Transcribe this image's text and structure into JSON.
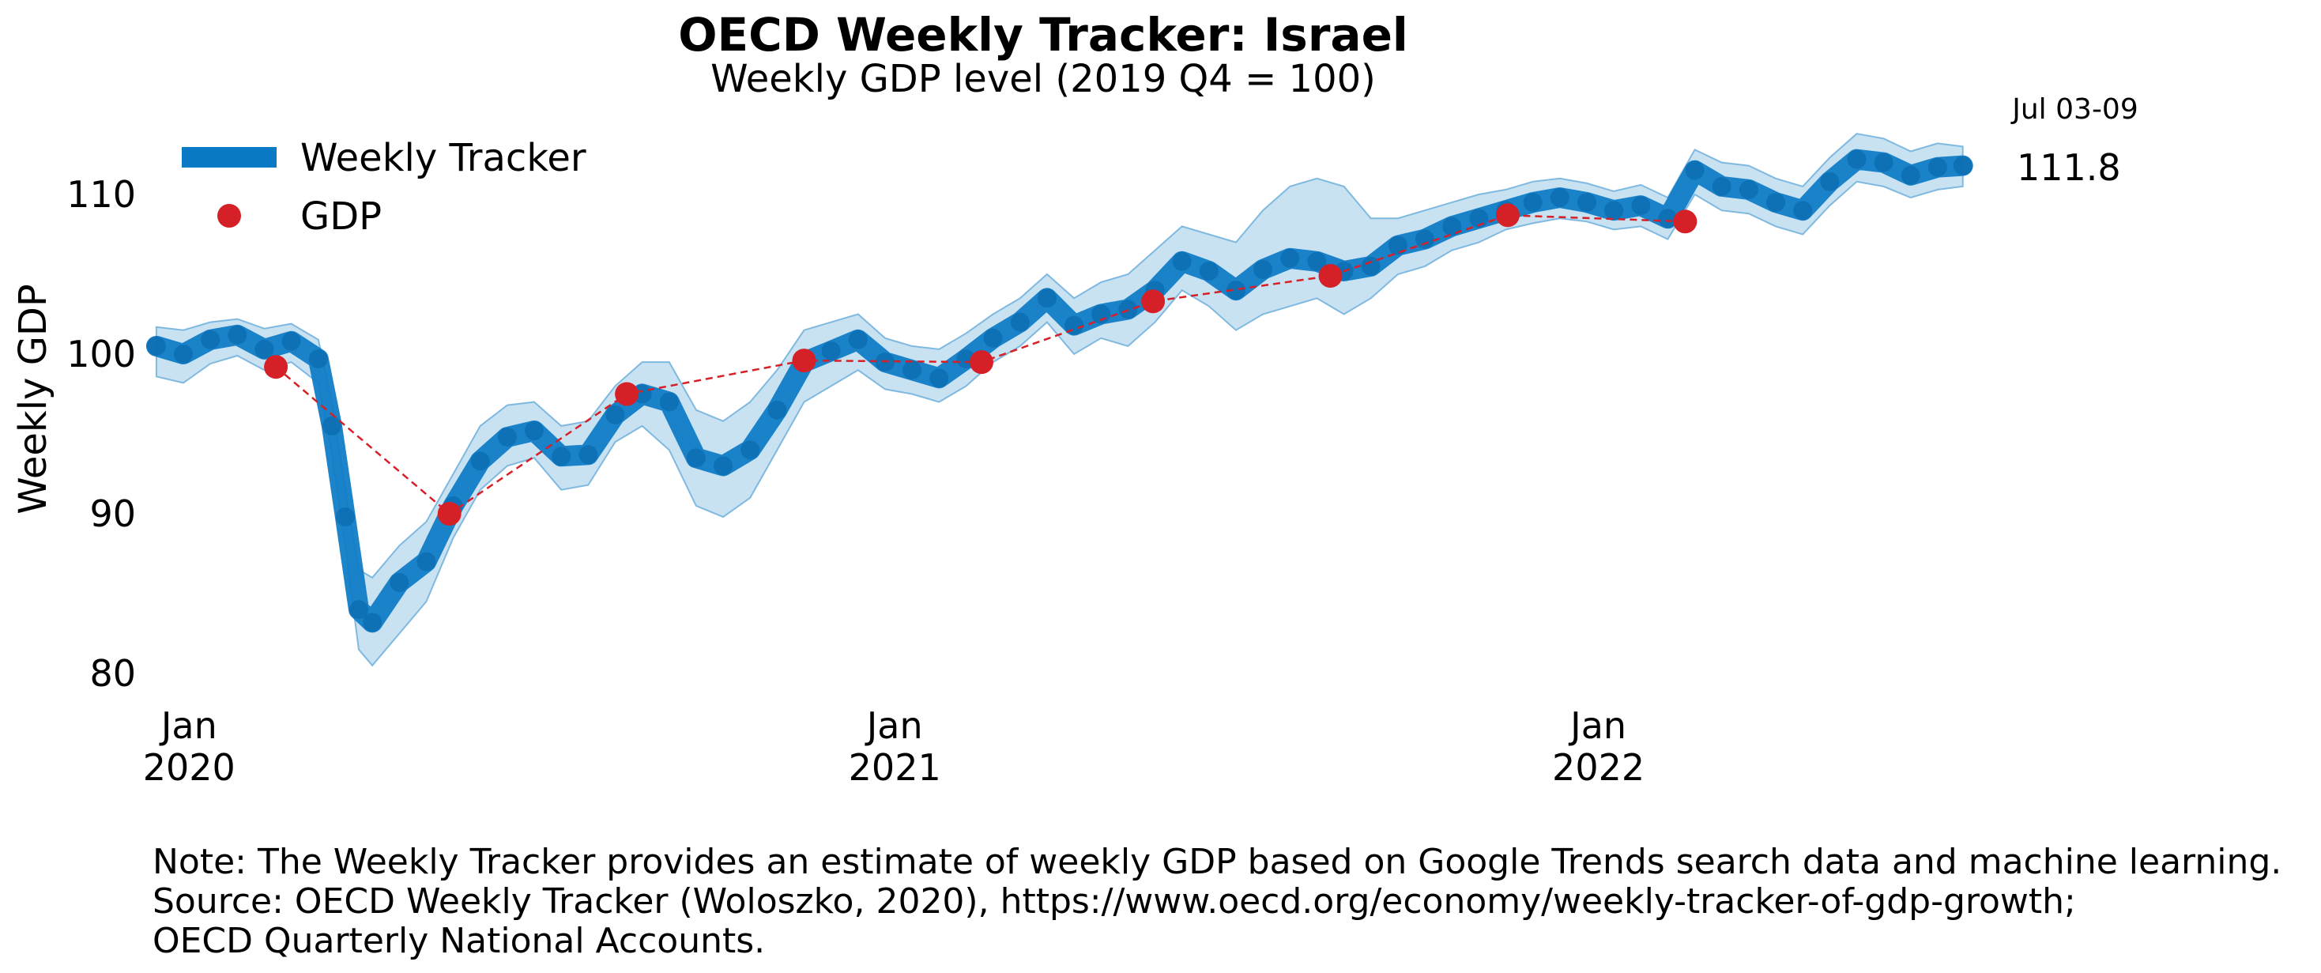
{
  "chart_data": {
    "type": "line",
    "title": "OECD Weekly Tracker: Israel",
    "subtitle": "Weekly GDP level (2019 Q4 = 100)",
    "ylabel": "Weekly GDP",
    "xlabel": "",
    "ylim": [
      78,
      114
    ],
    "yticks": [
      80,
      90,
      100,
      110
    ],
    "xticks": [
      {
        "date": "2020-01-01",
        "line1": "Jan",
        "line2": "2020"
      },
      {
        "date": "2021-01-01",
        "line1": "Jan",
        "line2": "2021"
      },
      {
        "date": "2022-01-01",
        "line1": "Jan",
        "line2": "2022"
      }
    ],
    "xlim": [
      "2019-12-13",
      "2022-07-28"
    ],
    "grid": false,
    "legend_position": "top-left",
    "colors": {
      "tracker": "#0b7ac6",
      "band": "#9ccbe8",
      "gdp": "#d62027"
    },
    "end_label": {
      "period": "Jul 03-09",
      "value": 111.8
    },
    "series": [
      {
        "name": "Weekly Tracker",
        "kind": "line-with-band",
        "points": [
          [
            "2019-12-15",
            100.5,
            98.6,
            101.7
          ],
          [
            "2019-12-29",
            100.0,
            98.2,
            101.5
          ],
          [
            "2020-01-12",
            100.9,
            99.4,
            102.0
          ],
          [
            "2020-01-26",
            101.2,
            99.9,
            102.2
          ],
          [
            "2020-02-09",
            100.3,
            99.0,
            101.6
          ],
          [
            "2020-02-23",
            100.8,
            99.5,
            101.9
          ],
          [
            "2020-03-08",
            99.7,
            98.2,
            100.9
          ],
          [
            "2020-03-15",
            95.5,
            93.8,
            97.0
          ],
          [
            "2020-03-22",
            89.8,
            88.0,
            91.5
          ],
          [
            "2020-03-29",
            84.0,
            81.5,
            86.5
          ],
          [
            "2020-04-05",
            83.2,
            80.5,
            86.0
          ],
          [
            "2020-04-19",
            85.7,
            82.5,
            88.0
          ],
          [
            "2020-05-03",
            87.0,
            84.5,
            89.5
          ],
          [
            "2020-05-17",
            90.5,
            88.5,
            92.5
          ],
          [
            "2020-05-31",
            93.3,
            91.5,
            95.5
          ],
          [
            "2020-06-14",
            94.8,
            93.0,
            96.8
          ],
          [
            "2020-06-28",
            95.2,
            93.5,
            97.0
          ],
          [
            "2020-07-12",
            93.6,
            91.5,
            95.5
          ],
          [
            "2020-07-26",
            93.7,
            91.8,
            95.8
          ],
          [
            "2020-08-09",
            96.2,
            94.5,
            98.0
          ],
          [
            "2020-08-23",
            97.5,
            95.5,
            99.5
          ],
          [
            "2020-09-06",
            97.0,
            94.0,
            99.5
          ],
          [
            "2020-09-20",
            93.5,
            90.5,
            96.5
          ],
          [
            "2020-10-04",
            93.0,
            89.8,
            95.8
          ],
          [
            "2020-10-18",
            94.0,
            91.0,
            97.0
          ],
          [
            "2020-11-01",
            96.5,
            94.0,
            99.0
          ],
          [
            "2020-11-15",
            99.5,
            97.0,
            101.5
          ],
          [
            "2020-11-29",
            100.2,
            98.0,
            102.0
          ],
          [
            "2020-12-13",
            100.9,
            99.0,
            102.5
          ],
          [
            "2020-12-27",
            99.5,
            97.8,
            101.0
          ],
          [
            "2021-01-10",
            99.0,
            97.5,
            100.5
          ],
          [
            "2021-01-24",
            98.5,
            97.0,
            100.3
          ],
          [
            "2021-02-07",
            99.7,
            98.0,
            101.3
          ],
          [
            "2021-02-21",
            101.0,
            99.5,
            102.5
          ],
          [
            "2021-03-07",
            102.0,
            100.5,
            103.5
          ],
          [
            "2021-03-21",
            103.5,
            102.0,
            105.0
          ],
          [
            "2021-04-04",
            101.8,
            100.0,
            103.5
          ],
          [
            "2021-04-18",
            102.5,
            101.0,
            104.5
          ],
          [
            "2021-05-02",
            102.8,
            100.5,
            105.0
          ],
          [
            "2021-05-16",
            104.0,
            102.0,
            106.5
          ],
          [
            "2021-05-30",
            105.8,
            104.0,
            108.0
          ],
          [
            "2021-06-13",
            105.2,
            103.0,
            107.5
          ],
          [
            "2021-06-27",
            104.0,
            101.5,
            107.0
          ],
          [
            "2021-07-11",
            105.3,
            102.5,
            109.0
          ],
          [
            "2021-07-25",
            106.0,
            103.0,
            110.5
          ],
          [
            "2021-08-08",
            105.8,
            103.5,
            111.0
          ],
          [
            "2021-08-22",
            105.2,
            102.5,
            110.5
          ],
          [
            "2021-09-05",
            105.5,
            103.5,
            108.5
          ],
          [
            "2021-09-19",
            106.8,
            105.0,
            108.5
          ],
          [
            "2021-10-03",
            107.2,
            105.5,
            109.0
          ],
          [
            "2021-10-17",
            108.0,
            106.5,
            109.5
          ],
          [
            "2021-10-31",
            108.5,
            107.0,
            110.0
          ],
          [
            "2021-11-14",
            109.0,
            107.8,
            110.3
          ],
          [
            "2021-11-28",
            109.5,
            108.2,
            110.8
          ],
          [
            "2021-12-12",
            109.8,
            108.5,
            111.0
          ],
          [
            "2021-12-26",
            109.5,
            108.3,
            110.7
          ],
          [
            "2022-01-09",
            109.0,
            107.8,
            110.2
          ],
          [
            "2022-01-23",
            109.3,
            108.0,
            110.6
          ],
          [
            "2022-02-06",
            108.5,
            107.2,
            109.8
          ],
          [
            "2022-02-20",
            111.5,
            110.0,
            112.8
          ],
          [
            "2022-03-06",
            110.5,
            109.0,
            112.0
          ],
          [
            "2022-03-20",
            110.3,
            108.8,
            111.8
          ],
          [
            "2022-04-03",
            109.5,
            108.0,
            111.0
          ],
          [
            "2022-04-17",
            109.0,
            107.5,
            110.5
          ],
          [
            "2022-05-01",
            110.8,
            109.3,
            112.3
          ],
          [
            "2022-05-15",
            112.2,
            110.8,
            113.8
          ],
          [
            "2022-05-29",
            112.0,
            110.5,
            113.5
          ],
          [
            "2022-06-12",
            111.2,
            109.8,
            112.7
          ],
          [
            "2022-06-26",
            111.7,
            110.3,
            113.2
          ],
          [
            "2022-07-09",
            111.8,
            110.5,
            113.0
          ]
        ]
      },
      {
        "name": "GDP",
        "kind": "markers-dashed",
        "points": [
          [
            "2020-02-15",
            99.2
          ],
          [
            "2020-05-15",
            90.0
          ],
          [
            "2020-08-15",
            97.5
          ],
          [
            "2020-11-15",
            99.6
          ],
          [
            "2021-02-15",
            99.5
          ],
          [
            "2021-05-15",
            103.3
          ],
          [
            "2021-08-15",
            104.9
          ],
          [
            "2021-11-15",
            108.7
          ],
          [
            "2022-02-15",
            108.3
          ]
        ]
      }
    ]
  },
  "notes": [
    "Note: The Weekly Tracker provides an estimate of weekly GDP based on Google Trends search data and machine learning.",
    "Source: OECD Weekly Tracker (Woloszko, 2020), https://www.oecd.org/economy/weekly-tracker-of-gdp-growth;",
    "OECD Quarterly National Accounts."
  ]
}
